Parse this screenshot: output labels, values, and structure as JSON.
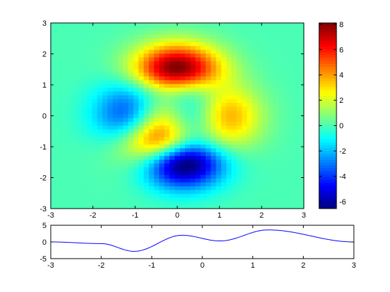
{
  "chart_data": [
    {
      "type": "heatmap",
      "function": "peaks",
      "colormap": "jet",
      "x_range": [
        -3,
        3
      ],
      "y_range": [
        -3,
        3
      ],
      "grid_resolution": 49,
      "x_ticks": [
        -3,
        -2,
        -1,
        0,
        1,
        2,
        3
      ],
      "y_ticks": [
        -3,
        -2,
        -1,
        0,
        1,
        2,
        3
      ],
      "colorbar": {
        "clim": [
          -6.55,
          8.1
        ],
        "ticks": [
          -6,
          -4,
          -2,
          0,
          2,
          4,
          6,
          8
        ]
      },
      "features": [
        {
          "label": "max",
          "x": 0.0,
          "y": 1.6,
          "value": 8.1
        },
        {
          "label": "min",
          "x": 0.2,
          "y": -1.6,
          "value": -6.55
        },
        {
          "label": "local-min",
          "x": -1.3,
          "y": 0.2,
          "value": -3.0
        },
        {
          "label": "local-max",
          "x": 1.3,
          "y": 0.0,
          "value": 3.6
        },
        {
          "label": "local-max",
          "x": -0.4,
          "y": -0.6,
          "value": 3.8
        }
      ]
    },
    {
      "type": "line",
      "x_range": [
        -3,
        3
      ],
      "ylim": [
        -5,
        5
      ],
      "x_ticks": [
        -3,
        -2,
        -1,
        0,
        1,
        2,
        3
      ],
      "y_ticks": [
        -5,
        0,
        5
      ],
      "series_color": "#0000ff",
      "approx_points": [
        {
          "x": -3.0,
          "y": 0.0
        },
        {
          "x": -2.0,
          "y": -0.5
        },
        {
          "x": -1.35,
          "y": -2.8
        },
        {
          "x": -0.4,
          "y": 2.0
        },
        {
          "x": 0.35,
          "y": 0.3
        },
        {
          "x": 1.3,
          "y": 3.6
        },
        {
          "x": 3.0,
          "y": 0.0
        }
      ]
    }
  ]
}
